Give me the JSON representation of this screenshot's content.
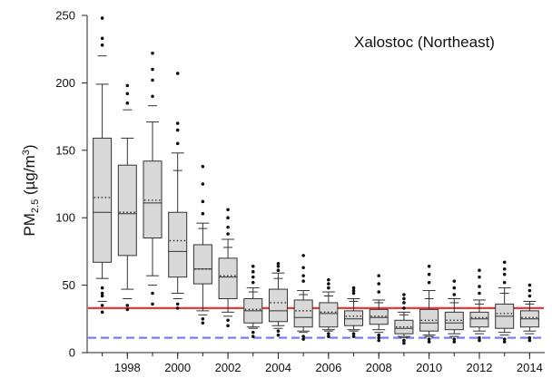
{
  "chart_data": {
    "type": "box",
    "annotation": "Xalostoc (Northeast)",
    "ylabel": {
      "main": "PM",
      "sub": "2.5",
      "unit_open": " (µg/m",
      "sup": "3",
      "unit_close": ")"
    },
    "ylim": [
      0,
      250
    ],
    "y_ticks": [
      0,
      50,
      100,
      150,
      200,
      250
    ],
    "x_ticks": [
      1998,
      2000,
      2002,
      2004,
      2006,
      2008,
      2010,
      2012,
      2014
    ],
    "x_range": [
      1996.4,
      2014.6
    ],
    "reference_lines": [
      {
        "value": 33,
        "color": "#e83a3a",
        "style": "solid"
      },
      {
        "value": 11,
        "color": "#7b7ef0",
        "style": "dashed"
      }
    ],
    "box_fill": "#d9d9d9",
    "boxes": [
      {
        "year": 1997,
        "p5": 38,
        "p10": 55,
        "q1": 67,
        "median": 104,
        "mean": 115,
        "q3": 159,
        "p90": 199,
        "p95": 220,
        "outliers": [
          30,
          35,
          42,
          44,
          48,
          228,
          233,
          248
        ]
      },
      {
        "year": 1998,
        "p5": 40,
        "p10": 47,
        "q1": 72,
        "median": 103,
        "mean": 104,
        "q3": 139,
        "p90": 159,
        "p95": 180,
        "outliers": [
          32,
          35,
          185,
          192,
          198
        ]
      },
      {
        "year": 1999,
        "p5": 50,
        "p10": 57,
        "q1": 85,
        "median": 111,
        "mean": 113,
        "q3": 142,
        "p90": 171,
        "p95": 183,
        "outliers": [
          36,
          44,
          190,
          202,
          210,
          222
        ]
      },
      {
        "year": 2000,
        "p5": 40,
        "p10": 44,
        "q1": 56,
        "median": 75,
        "mean": 83,
        "q3": 104,
        "p90": 148,
        "p95": 135,
        "outliers": [
          33,
          36,
          155,
          165,
          170,
          207
        ]
      },
      {
        "year": 2001,
        "p5": 28,
        "p10": 31,
        "q1": 51,
        "median": 62,
        "mean": 62,
        "q3": 80,
        "p90": 96,
        "p95": 92,
        "outliers": [
          22,
          25,
          103,
          112,
          125,
          138
        ]
      },
      {
        "year": 2002,
        "p5": 27,
        "p10": 30,
        "q1": 40,
        "median": 56,
        "mean": 57,
        "q3": 70,
        "p90": 84,
        "p95": 78,
        "outliers": [
          20,
          24,
          88,
          93,
          100,
          106
        ]
      },
      {
        "year": 2003,
        "p5": 18,
        "p10": 19,
        "q1": 22,
        "median": 31,
        "mean": 32,
        "q3": 40,
        "p90": 48,
        "p95": 45,
        "outliers": [
          12,
          15,
          52,
          56,
          60,
          64
        ]
      },
      {
        "year": 2004,
        "p5": 18,
        "p10": 20,
        "q1": 23,
        "median": 31,
        "mean": 37,
        "q3": 47,
        "p90": 59,
        "p95": 55,
        "outliers": [
          13,
          16,
          61,
          64,
          66
        ]
      },
      {
        "year": 2005,
        "p5": 15,
        "p10": 16,
        "q1": 19,
        "median": 26,
        "mean": 31,
        "q3": 39,
        "p90": 46,
        "p95": 43,
        "outliers": [
          10,
          12,
          53,
          57,
          63,
          72
        ]
      },
      {
        "year": 2006,
        "p5": 16,
        "p10": 17,
        "q1": 19,
        "median": 29,
        "mean": 30,
        "q3": 37,
        "p90": 45,
        "p95": 42,
        "outliers": [
          12,
          14,
          48,
          51,
          54
        ]
      },
      {
        "year": 2007,
        "p5": 16,
        "p10": 17,
        "q1": 20,
        "median": 25,
        "mean": 27,
        "q3": 31,
        "p90": 40,
        "p95": 38,
        "outliers": [
          12,
          14,
          44,
          46,
          48
        ]
      },
      {
        "year": 2008,
        "p5": 15,
        "p10": 17,
        "q1": 21,
        "median": 26,
        "mean": 27,
        "q3": 32,
        "p90": 39,
        "p95": 37,
        "outliers": [
          9,
          11,
          13,
          45,
          51,
          57
        ]
      },
      {
        "year": 2009,
        "p5": 11,
        "p10": 12,
        "q1": 14,
        "median": 18,
        "mean": 19,
        "q3": 24,
        "p90": 30,
        "p95": 28,
        "outliers": [
          7,
          9,
          33,
          37,
          40,
          43
        ]
      },
      {
        "year": 2010,
        "p5": 12,
        "p10": 13,
        "q1": 16,
        "median": 22,
        "mean": 24,
        "q3": 32,
        "p90": 46,
        "p95": 40,
        "outliers": [
          8,
          10,
          52,
          58,
          64
        ]
      },
      {
        "year": 2011,
        "p5": 12,
        "p10": 14,
        "q1": 17,
        "median": 22,
        "mean": 24,
        "q3": 30,
        "p90": 40,
        "p95": 37,
        "outliers": [
          8,
          10,
          43,
          48,
          53
        ]
      },
      {
        "year": 2012,
        "p5": 14,
        "p10": 16,
        "q1": 19,
        "median": 25,
        "mean": 26,
        "q3": 30,
        "p90": 39,
        "p95": 36,
        "outliers": [
          9,
          11,
          44,
          49,
          56,
          61
        ]
      },
      {
        "year": 2013,
        "p5": 13,
        "p10": 15,
        "q1": 18,
        "median": 27,
        "mean": 29,
        "q3": 36,
        "p90": 48,
        "p95": 44,
        "outliers": [
          8,
          10,
          52,
          58,
          62,
          67
        ]
      },
      {
        "year": 2014,
        "p5": 14,
        "p10": 16,
        "q1": 19,
        "median": 25,
        "mean": 26,
        "q3": 31,
        "p90": 38,
        "p95": 36,
        "outliers": [
          9,
          11,
          42,
          46,
          50
        ]
      }
    ]
  }
}
